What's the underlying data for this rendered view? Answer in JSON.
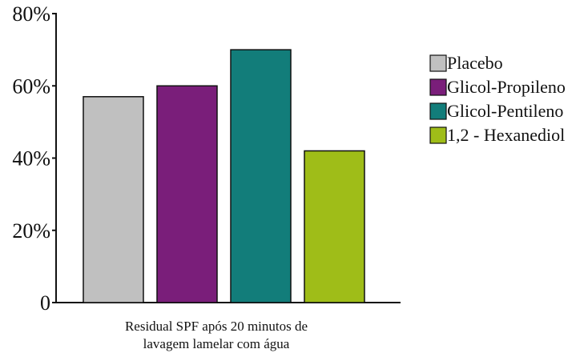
{
  "chart_data": {
    "type": "bar",
    "title": "",
    "xlabel": "Residual SPF após 20 minutos de lavagem lamelar com água",
    "xlabel_lines": [
      "Residual SPF após 20 minutos de",
      "lavagem lamelar com água"
    ],
    "ylabel": "",
    "ylim": [
      0,
      80
    ],
    "yticks": [
      0,
      20,
      40,
      60,
      80
    ],
    "ytick_labels": [
      "0",
      "20%",
      "40%",
      "60%",
      "80%"
    ],
    "grid": false,
    "legend_position": "right",
    "series": [
      {
        "name": "Placebo",
        "value": 57,
        "color": "#c0c0c0"
      },
      {
        "name": "Glicol-Propileno",
        "value": 60,
        "color": "#7a1e7a"
      },
      {
        "name": "Glicol-Pentileno",
        "value": 70,
        "color": "#127d7a"
      },
      {
        "name": "1,2 - Hexanediol",
        "value": 42,
        "color": "#9fbd18"
      }
    ]
  }
}
